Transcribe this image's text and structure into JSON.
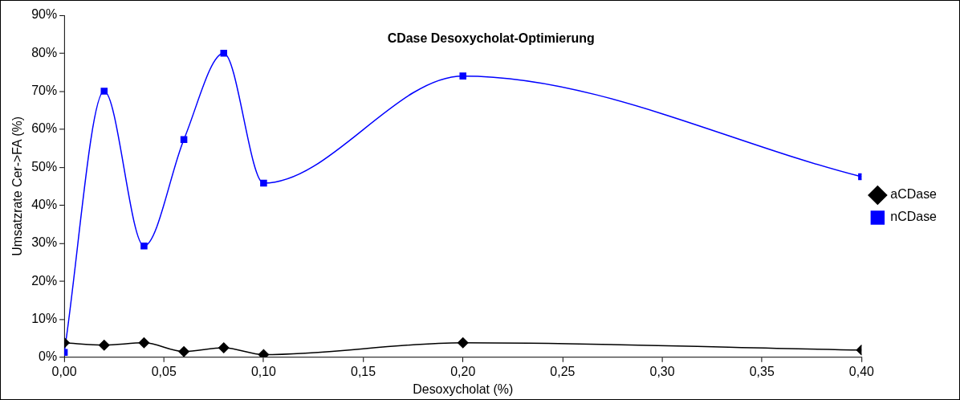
{
  "chart_data": {
    "type": "line",
    "title": "CDase Desoxycholat-Optimierung",
    "xlabel": "Desoxycholat (%)",
    "ylabel": "Umsatzrate Cer->FA (%)",
    "x": [
      0,
      0.02,
      0.04,
      0.06,
      0.08,
      0.1,
      0.2,
      0.4
    ],
    "series": [
      {
        "name": "aCDase",
        "color": "#000000",
        "marker": "diamond",
        "values": [
          3.8,
          3.2,
          3.8,
          1.5,
          2.5,
          0.7,
          3.8,
          1.9
        ]
      },
      {
        "name": "nCDase",
        "color": "#0000ff",
        "marker": "square",
        "values": [
          1.3,
          70,
          29.3,
          57.3,
          80,
          45.8,
          74,
          47.5
        ]
      }
    ],
    "xlim": [
      0,
      0.4
    ],
    "xticks": [
      {
        "value": 0,
        "label": "0,00"
      },
      {
        "value": 0.05,
        "label": "0,05"
      },
      {
        "value": 0.1,
        "label": "0,10"
      },
      {
        "value": 0.15,
        "label": "0,15"
      },
      {
        "value": 0.2,
        "label": "0,20"
      },
      {
        "value": 0.25,
        "label": "0,25"
      },
      {
        "value": 0.3,
        "label": "0,30"
      },
      {
        "value": 0.35,
        "label": "0,35"
      },
      {
        "value": 0.4,
        "label": "0,40"
      }
    ],
    "ylim": [
      0,
      90
    ],
    "yticks": [
      {
        "value": 0,
        "label": "0%"
      },
      {
        "value": 10,
        "label": "10%"
      },
      {
        "value": 20,
        "label": "20%"
      },
      {
        "value": 30,
        "label": "30%"
      },
      {
        "value": 40,
        "label": "40%"
      },
      {
        "value": 50,
        "label": "50%"
      },
      {
        "value": 60,
        "label": "60%"
      },
      {
        "value": 70,
        "label": "70%"
      },
      {
        "value": 80,
        "label": "80%"
      },
      {
        "value": 90,
        "label": "90%"
      }
    ],
    "grid": false,
    "legend": "right",
    "line_style": "solid"
  }
}
